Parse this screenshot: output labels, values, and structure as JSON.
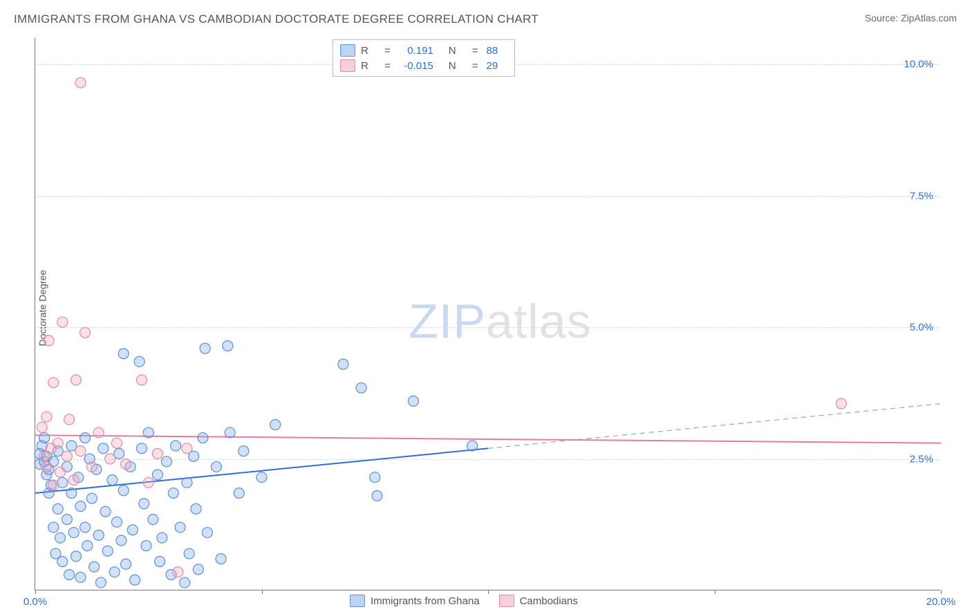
{
  "title": "IMMIGRANTS FROM GHANA VS CAMBODIAN DOCTORATE DEGREE CORRELATION CHART",
  "source_label": "Source: ",
  "source_name": "ZipAtlas.com",
  "y_axis_label": "Doctorate Degree",
  "watermark": {
    "a": "ZIP",
    "b": "atlas"
  },
  "chart": {
    "type": "scatter",
    "xlim": [
      0,
      20
    ],
    "ylim": [
      0,
      10.5
    ],
    "x_ticks": [
      0,
      5,
      10,
      15,
      20
    ],
    "x_tick_labels": [
      "0.0%",
      "",
      "",
      "",
      "20.0%"
    ],
    "y_gridlines": [
      2.5,
      5.0,
      7.5,
      10.0
    ],
    "y_tick_labels": [
      "2.5%",
      "5.0%",
      "7.5%",
      "10.0%"
    ],
    "background_color": "#ffffff",
    "grid_color": "#d8d8d8",
    "axis_color": "#777777",
    "marker_radius": 7.5,
    "series": [
      {
        "name": "Immigrants from Ghana",
        "color_fill": "rgba(120,170,235,0.35)",
        "color_stroke": "#5a8fd6",
        "swatch_class": "blue",
        "r": "0.191",
        "n": "88",
        "trend": {
          "y_at_x0": 1.85,
          "y_at_xmax": 3.55,
          "solid_until_x": 10.0,
          "solid_color": "#2f6fd3",
          "dash_color": "#7fa9e0",
          "width": 2
        },
        "points": [
          [
            0.1,
            2.6
          ],
          [
            0.1,
            2.4
          ],
          [
            0.15,
            2.75
          ],
          [
            0.2,
            2.45
          ],
          [
            0.2,
            2.9
          ],
          [
            0.25,
            2.2
          ],
          [
            0.25,
            2.55
          ],
          [
            0.3,
            1.85
          ],
          [
            0.3,
            2.3
          ],
          [
            0.35,
            2.0
          ],
          [
            0.4,
            2.45
          ],
          [
            0.4,
            1.2
          ],
          [
            0.45,
            0.7
          ],
          [
            0.5,
            2.65
          ],
          [
            0.5,
            1.55
          ],
          [
            0.55,
            1.0
          ],
          [
            0.6,
            2.05
          ],
          [
            0.6,
            0.55
          ],
          [
            0.7,
            2.35
          ],
          [
            0.7,
            1.35
          ],
          [
            0.75,
            0.3
          ],
          [
            0.8,
            2.75
          ],
          [
            0.8,
            1.85
          ],
          [
            0.85,
            1.1
          ],
          [
            0.9,
            0.65
          ],
          [
            0.95,
            2.15
          ],
          [
            1.0,
            1.6
          ],
          [
            1.0,
            0.25
          ],
          [
            1.1,
            2.9
          ],
          [
            1.1,
            1.2
          ],
          [
            1.15,
            0.85
          ],
          [
            1.2,
            2.5
          ],
          [
            1.25,
            1.75
          ],
          [
            1.3,
            0.45
          ],
          [
            1.35,
            2.3
          ],
          [
            1.4,
            1.05
          ],
          [
            1.45,
            0.15
          ],
          [
            1.5,
            2.7
          ],
          [
            1.55,
            1.5
          ],
          [
            1.6,
            0.75
          ],
          [
            1.7,
            2.1
          ],
          [
            1.75,
            0.35
          ],
          [
            1.8,
            1.3
          ],
          [
            1.85,
            2.6
          ],
          [
            1.9,
            0.95
          ],
          [
            1.95,
            1.9
          ],
          [
            2.0,
            0.5
          ],
          [
            2.1,
            2.35
          ],
          [
            2.15,
            1.15
          ],
          [
            2.2,
            0.2
          ],
          [
            2.3,
            4.35
          ],
          [
            2.35,
            2.7
          ],
          [
            2.4,
            1.65
          ],
          [
            2.45,
            0.85
          ],
          [
            2.5,
            3.0
          ],
          [
            2.6,
            1.35
          ],
          [
            2.7,
            2.2
          ],
          [
            2.75,
            0.55
          ],
          [
            2.8,
            1.0
          ],
          [
            2.9,
            2.45
          ],
          [
            3.0,
            0.3
          ],
          [
            3.05,
            1.85
          ],
          [
            3.1,
            2.75
          ],
          [
            3.2,
            1.2
          ],
          [
            3.3,
            0.15
          ],
          [
            3.35,
            2.05
          ],
          [
            3.4,
            0.7
          ],
          [
            3.5,
            2.55
          ],
          [
            3.55,
            1.55
          ],
          [
            3.6,
            0.4
          ],
          [
            3.7,
            2.9
          ],
          [
            3.75,
            4.6
          ],
          [
            3.8,
            1.1
          ],
          [
            4.0,
            2.35
          ],
          [
            4.1,
            0.6
          ],
          [
            4.25,
            4.65
          ],
          [
            4.3,
            3.0
          ],
          [
            4.5,
            1.85
          ],
          [
            4.6,
            2.65
          ],
          [
            5.0,
            2.15
          ],
          [
            5.3,
            3.15
          ],
          [
            6.8,
            4.3
          ],
          [
            7.2,
            3.85
          ],
          [
            7.5,
            2.15
          ],
          [
            7.55,
            1.8
          ],
          [
            8.35,
            3.6
          ],
          [
            9.65,
            2.75
          ],
          [
            1.95,
            4.5
          ]
        ]
      },
      {
        "name": "Cambodians",
        "color_fill": "rgba(240,170,190,0.35)",
        "color_stroke": "#e08ba2",
        "swatch_class": "pink",
        "r": "-0.015",
        "n": "29",
        "trend": {
          "y_at_x0": 2.95,
          "y_at_xmax": 2.8,
          "solid_until_x": 20.0,
          "solid_color": "#e679a0",
          "dash_color": "#e679a0",
          "width": 2
        },
        "points": [
          [
            0.15,
            3.1
          ],
          [
            0.2,
            2.55
          ],
          [
            0.25,
            3.3
          ],
          [
            0.25,
            2.35
          ],
          [
            0.3,
            4.75
          ],
          [
            0.35,
            2.7
          ],
          [
            0.4,
            3.95
          ],
          [
            0.4,
            2.0
          ],
          [
            0.5,
            2.8
          ],
          [
            0.55,
            2.25
          ],
          [
            0.6,
            5.1
          ],
          [
            0.7,
            2.55
          ],
          [
            0.75,
            3.25
          ],
          [
            0.85,
            2.1
          ],
          [
            0.9,
            4.0
          ],
          [
            1.0,
            2.65
          ],
          [
            1.1,
            4.9
          ],
          [
            1.25,
            2.35
          ],
          [
            1.4,
            3.0
          ],
          [
            1.65,
            2.5
          ],
          [
            1.8,
            2.8
          ],
          [
            2.0,
            2.4
          ],
          [
            2.35,
            4.0
          ],
          [
            2.5,
            2.05
          ],
          [
            2.7,
            2.6
          ],
          [
            3.15,
            0.35
          ],
          [
            3.35,
            2.7
          ],
          [
            1.0,
            9.65
          ],
          [
            17.8,
            3.55
          ]
        ]
      }
    ]
  },
  "legend_bottom": [
    {
      "swatch": "blue",
      "label": "Immigrants from Ghana"
    },
    {
      "swatch": "pink",
      "label": "Cambodians"
    }
  ]
}
